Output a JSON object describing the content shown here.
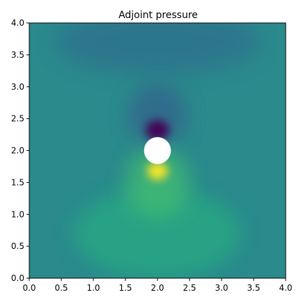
{
  "chart_data": {
    "type": "heatmap",
    "title": "Adjoint pressure",
    "xlabel": "",
    "ylabel": "",
    "xlim": [
      0.0,
      4.0
    ],
    "ylim": [
      0.0,
      4.0
    ],
    "x_ticks": [
      0.0,
      0.5,
      1.0,
      1.5,
      2.0,
      2.5,
      3.0,
      3.5,
      4.0
    ],
    "y_ticks": [
      0.0,
      0.5,
      1.0,
      1.5,
      2.0,
      2.5,
      3.0,
      3.5,
      4.0
    ],
    "x_tick_labels": [
      "0.0",
      "0.5",
      "1.0",
      "1.5",
      "2.0",
      "2.5",
      "3.0",
      "3.5",
      "4.0"
    ],
    "y_tick_labels": [
      "0.0",
      "0.5",
      "1.0",
      "1.5",
      "2.0",
      "2.5",
      "3.0",
      "3.5",
      "4.0"
    ],
    "grid": false,
    "colormap": "viridis",
    "background_color": "#2a8a8c",
    "obstacle": {
      "shape": "circle",
      "center": [
        2.0,
        2.0
      ],
      "radius": 0.21,
      "color": "#ffffff"
    },
    "features": [
      {
        "kind": "minimum",
        "center": [
          2.0,
          2.32
        ],
        "spread": [
          0.18,
          0.16
        ],
        "color": "#440154"
      },
      {
        "kind": "minimum-halo",
        "center": [
          2.0,
          2.55
        ],
        "spread": [
          0.45,
          0.5
        ],
        "color": "#355f8d"
      },
      {
        "kind": "maximum",
        "center": [
          2.0,
          1.68
        ],
        "spread": [
          0.16,
          0.14
        ],
        "color": "#fde725"
      },
      {
        "kind": "maximum-halo",
        "center": [
          2.0,
          1.5
        ],
        "spread": [
          0.5,
          0.55
        ],
        "color": "#44bf70"
      },
      {
        "kind": "upper-band",
        "center": [
          2.0,
          3.7
        ],
        "spread": [
          1.6,
          0.5
        ],
        "color": "#2e6e8e"
      },
      {
        "kind": "lower-band",
        "center": [
          2.0,
          0.7
        ],
        "spread": [
          1.3,
          0.7
        ],
        "color": "#27ad81"
      }
    ]
  }
}
